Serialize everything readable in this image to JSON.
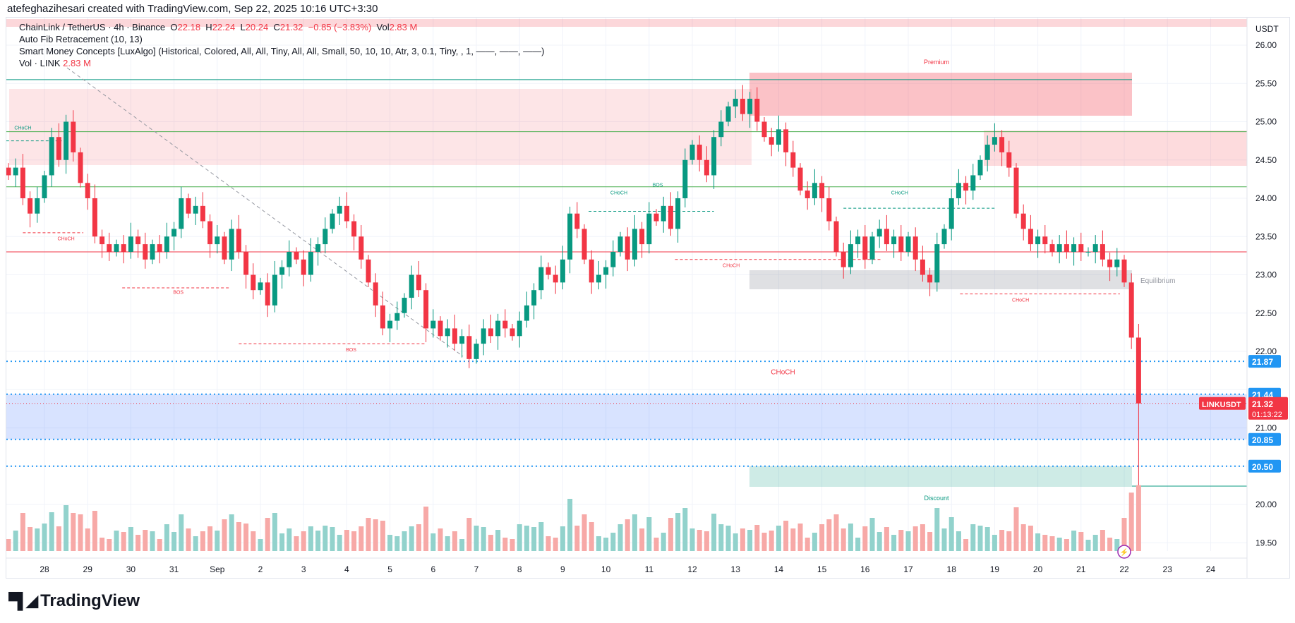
{
  "header": {
    "created": "atefeghazihesari created with TradingView.com, Sep 22, 2025 10:16 UTC+3:30"
  },
  "legend": {
    "symbol": "ChainLink / TetherUS · 4h · Binance",
    "o_label": "O",
    "o": "22.18",
    "h_label": "H",
    "h": "22.24",
    "l_label": "L",
    "l": "20.24",
    "c_label": "C",
    "c": "21.32",
    "change": "−0.85 (−3.83%)",
    "vol_label": "Vol",
    "vol": "2.83 M",
    "fib": "Auto Fib Retracement (10, 13)",
    "smc": "Smart Money Concepts [LuxAlgo] (Historical, Colored, All, All, Tiny, All, All, Small, 50, 10, 10, Atr, 3, 0.1, Tiny, , 1, ——, ——, ——)",
    "vol_ind": "Vol · LINK",
    "vol_ind_val": "2.83 M"
  },
  "axis": {
    "currency": "USDT",
    "symbol_tag": "LINKUSDT",
    "last_price": "21.32",
    "countdown": "01:13:22"
  },
  "colors": {
    "up": "#089981",
    "down": "#f23645",
    "tag": "#2196f3"
  },
  "chart_data": {
    "type": "candlestick",
    "title": "ChainLink / TetherUS · 4h · Binance",
    "ylim": [
      19.3,
      26.3
    ],
    "y_ticks": [
      "26.00",
      "25.50",
      "25.00",
      "24.50",
      "24.00",
      "23.50",
      "23.00",
      "22.50",
      "22.00",
      "21.50",
      "21.00",
      "20.50",
      "20.00",
      "19.50"
    ],
    "x_ticks": [
      "28",
      "29",
      "30",
      "31",
      "Sep",
      "2",
      "3",
      "4",
      "5",
      "6",
      "7",
      "8",
      "9",
      "10",
      "11",
      "12",
      "13",
      "14",
      "15",
      "16",
      "17",
      "18",
      "19",
      "20",
      "21",
      "22",
      "23",
      "24"
    ],
    "open_first": 24.4,
    "closes": [
      24.3,
      24.4,
      24.0,
      23.8,
      24.0,
      24.3,
      24.8,
      24.5,
      25.0,
      24.6,
      24.2,
      24.0,
      23.5,
      23.4,
      23.3,
      23.4,
      23.3,
      23.5,
      23.4,
      23.2,
      23.4,
      23.3,
      23.5,
      23.6,
      24.0,
      23.8,
      23.9,
      23.7,
      23.4,
      23.5,
      23.2,
      23.6,
      23.3,
      23.0,
      22.8,
      22.9,
      22.6,
      23.0,
      23.1,
      23.3,
      23.2,
      23.0,
      23.3,
      23.4,
      23.6,
      23.8,
      23.9,
      23.7,
      23.5,
      23.2,
      22.9,
      22.6,
      22.3,
      22.4,
      22.5,
      22.7,
      23.0,
      22.8,
      22.3,
      22.4,
      22.2,
      22.3,
      22.1,
      22.2,
      21.9,
      22.1,
      22.3,
      22.2,
      22.4,
      22.3,
      22.2,
      22.4,
      22.6,
      22.8,
      23.1,
      23.0,
      22.9,
      23.2,
      23.8,
      23.6,
      23.2,
      22.9,
      23.0,
      23.1,
      23.3,
      23.5,
      23.2,
      23.6,
      23.4,
      23.8,
      23.7,
      23.9,
      23.6,
      24.0,
      24.5,
      24.7,
      24.5,
      24.3,
      24.8,
      25.0,
      25.2,
      25.3,
      25.1,
      25.3,
      25.0,
      24.8,
      24.7,
      24.9,
      24.6,
      24.4,
      24.1,
      24.0,
      24.2,
      24.0,
      23.7,
      23.3,
      23.1,
      23.4,
      23.5,
      23.2,
      23.5,
      23.6,
      23.4,
      23.5,
      23.3,
      23.5,
      23.2,
      23.0,
      22.9,
      23.4,
      23.6,
      24.0,
      24.2,
      24.1,
      24.3,
      24.5,
      24.7,
      24.8,
      24.6,
      24.4,
      23.8,
      23.6,
      23.4,
      23.5,
      23.4,
      23.3,
      23.4,
      23.3,
      23.4,
      23.3,
      23.3,
      23.4,
      23.2,
      23.1,
      23.2,
      22.9,
      22.18,
      21.32
    ],
    "last_low": 20.24,
    "levels": [
      {
        "label": "21.87",
        "price": 21.87
      },
      {
        "label": "21.44",
        "price": 21.44
      },
      {
        "label": "20.85",
        "price": 20.85
      },
      {
        "label": "20.50",
        "price": 20.5
      }
    ],
    "zones": {
      "premium": "Premium",
      "equilibrium": "Equilibrium",
      "discount": "Discount"
    },
    "structure_labels": [
      {
        "text": "CHoCH",
        "kind": "bull",
        "day": -0.5,
        "price": 24.9
      },
      {
        "text": "CHoCH",
        "kind": "bear",
        "day": 0.5,
        "price": 23.45
      },
      {
        "text": "BOS",
        "kind": "bear",
        "day": 3.1,
        "price": 22.75
      },
      {
        "text": "BOS",
        "kind": "bear",
        "day": 7.1,
        "price": 22.0
      },
      {
        "text": "CHoCH",
        "kind": "bull",
        "day": 13.3,
        "price": 24.05
      },
      {
        "text": "BOS",
        "kind": "bull",
        "day": 14.2,
        "price": 24.15
      },
      {
        "text": "CHoCH",
        "kind": "bear",
        "day": 15.9,
        "price": 23.1
      },
      {
        "text": "CHoCH",
        "kind": "bull",
        "day": 19.8,
        "price": 24.05
      },
      {
        "text": "CHoCH",
        "kind": "bear",
        "day": 22.6,
        "price": 22.65
      },
      {
        "text": "CHoCH",
        "kind": "bear",
        "day": 17.1,
        "price": 21.7
      }
    ]
  },
  "branding": {
    "logo": "TradingView"
  }
}
